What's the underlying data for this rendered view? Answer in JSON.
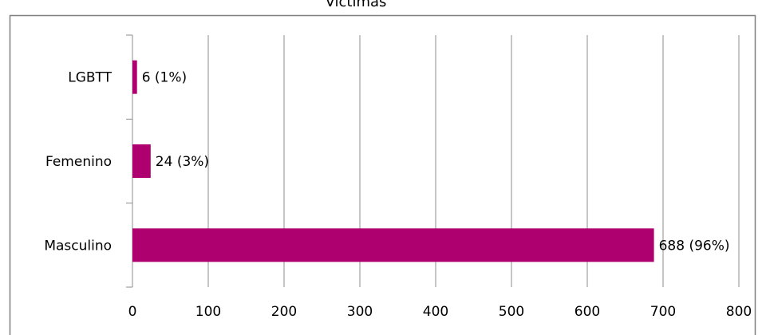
{
  "chart_data": {
    "type": "bar",
    "orientation": "horizontal",
    "title": "Victimas",
    "categories": [
      "LGBTT",
      "Femenino",
      "Masculino"
    ],
    "values": [
      6,
      24,
      688
    ],
    "data_labels": [
      "6 (1%)",
      "24 (3%)",
      "688 (96%)"
    ],
    "xlim": [
      0,
      800
    ],
    "xticks": [
      "0",
      "100",
      "200",
      "300",
      "400",
      "500",
      "600",
      "700",
      "800"
    ],
    "grid": true,
    "legend": "none",
    "colors": {
      "bar": "#AE006E",
      "grid": "#8c8c8c",
      "border": "#7f7f7f"
    }
  }
}
